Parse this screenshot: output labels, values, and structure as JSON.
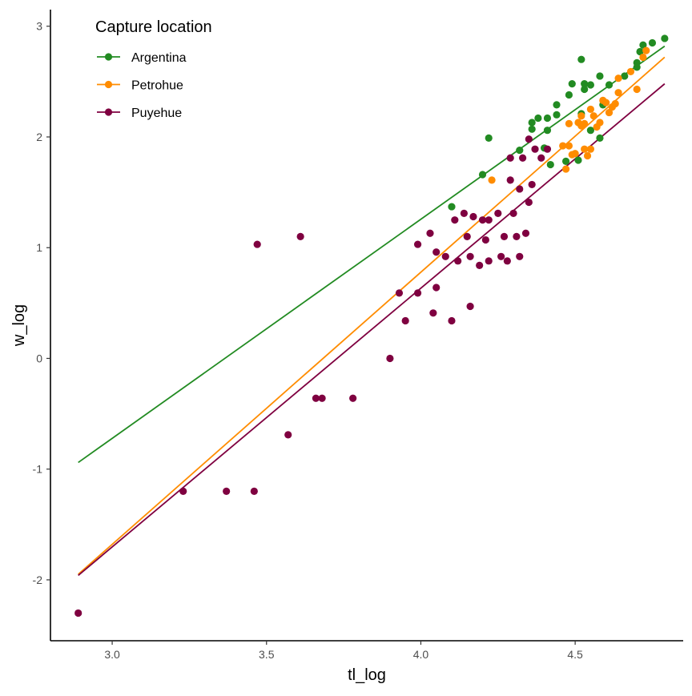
{
  "chart_data": {
    "type": "scatter",
    "xlabel": "tl_log",
    "ylabel": "w_log",
    "xlim": [
      2.8,
      4.85
    ],
    "ylim": [
      -2.55,
      3.15
    ],
    "xticks": [
      3.0,
      3.5,
      4.0,
      4.5
    ],
    "xtick_labels": [
      "3.0",
      "3.5",
      "4.0",
      "4.5"
    ],
    "yticks": [
      -2,
      -1,
      0,
      1,
      2,
      3
    ],
    "ytick_labels": [
      "-2",
      "-1",
      "0",
      "1",
      "2",
      "3"
    ],
    "grid": false,
    "legend": {
      "title": "Capture location",
      "position": "top-left"
    },
    "series": [
      {
        "name": "Argentina",
        "color": "#228B22",
        "points": [
          [
            4.1,
            1.37
          ],
          [
            4.2,
            1.66
          ],
          [
            4.22,
            1.99
          ],
          [
            4.32,
            1.88
          ],
          [
            4.36,
            2.07
          ],
          [
            4.36,
            2.13
          ],
          [
            4.38,
            2.17
          ],
          [
            4.4,
            1.9
          ],
          [
            4.41,
            2.06
          ],
          [
            4.41,
            2.17
          ],
          [
            4.42,
            1.75
          ],
          [
            4.44,
            2.2
          ],
          [
            4.44,
            2.29
          ],
          [
            4.47,
            1.78
          ],
          [
            4.48,
            2.38
          ],
          [
            4.49,
            2.48
          ],
          [
            4.51,
            1.79
          ],
          [
            4.52,
            2.7
          ],
          [
            4.52,
            2.21
          ],
          [
            4.53,
            2.43
          ],
          [
            4.53,
            2.48
          ],
          [
            4.55,
            2.47
          ],
          [
            4.55,
            2.06
          ],
          [
            4.58,
            2.55
          ],
          [
            4.58,
            1.99
          ],
          [
            4.59,
            2.29
          ],
          [
            4.61,
            2.47
          ],
          [
            4.66,
            2.55
          ],
          [
            4.7,
            2.63
          ],
          [
            4.7,
            2.67
          ],
          [
            4.71,
            2.77
          ],
          [
            4.72,
            2.83
          ],
          [
            4.75,
            2.85
          ],
          [
            4.79,
            2.89
          ]
        ],
        "fit": {
          "x": [
            2.89,
            4.79
          ],
          "y": [
            -0.94,
            2.82
          ]
        }
      },
      {
        "name": "Petrohue",
        "color": "#FF8C00",
        "points": [
          [
            4.23,
            1.61
          ],
          [
            4.46,
            1.92
          ],
          [
            4.47,
            1.71
          ],
          [
            4.48,
            1.92
          ],
          [
            4.48,
            2.12
          ],
          [
            4.49,
            1.84
          ],
          [
            4.5,
            1.85
          ],
          [
            4.51,
            2.13
          ],
          [
            4.52,
            2.19
          ],
          [
            4.52,
            2.1
          ],
          [
            4.53,
            2.12
          ],
          [
            4.53,
            1.89
          ],
          [
            4.54,
            1.83
          ],
          [
            4.55,
            1.89
          ],
          [
            4.55,
            2.25
          ],
          [
            4.56,
            2.19
          ],
          [
            4.57,
            2.09
          ],
          [
            4.58,
            2.13
          ],
          [
            4.59,
            2.33
          ],
          [
            4.6,
            2.31
          ],
          [
            4.61,
            2.22
          ],
          [
            4.62,
            2.27
          ],
          [
            4.63,
            2.3
          ],
          [
            4.64,
            2.4
          ],
          [
            4.64,
            2.53
          ],
          [
            4.68,
            2.59
          ],
          [
            4.7,
            2.43
          ],
          [
            4.72,
            2.72
          ],
          [
            4.73,
            2.78
          ]
        ],
        "fit": {
          "x": [
            2.89,
            4.79
          ],
          "y": [
            -1.95,
            2.72
          ]
        }
      },
      {
        "name": "Puyehue",
        "color": "#7F0040",
        "points": [
          [
            2.89,
            -2.3
          ],
          [
            3.23,
            -1.2
          ],
          [
            3.37,
            -1.2
          ],
          [
            3.46,
            -1.2
          ],
          [
            3.47,
            1.03
          ],
          [
            3.57,
            -0.69
          ],
          [
            3.61,
            1.1
          ],
          [
            3.66,
            -0.36
          ],
          [
            3.68,
            -0.36
          ],
          [
            3.78,
            -0.36
          ],
          [
            3.9,
            0.0
          ],
          [
            3.93,
            0.59
          ],
          [
            3.95,
            0.34
          ],
          [
            3.99,
            0.59
          ],
          [
            3.99,
            1.03
          ],
          [
            4.03,
            1.13
          ],
          [
            4.04,
            0.41
          ],
          [
            4.05,
            0.96
          ],
          [
            4.05,
            0.64
          ],
          [
            4.08,
            0.92
          ],
          [
            4.1,
            0.34
          ],
          [
            4.11,
            1.25
          ],
          [
            4.12,
            0.88
          ],
          [
            4.14,
            1.31
          ],
          [
            4.15,
            1.1
          ],
          [
            4.16,
            0.47
          ],
          [
            4.16,
            0.92
          ],
          [
            4.17,
            1.28
          ],
          [
            4.19,
            0.84
          ],
          [
            4.2,
            1.25
          ],
          [
            4.21,
            1.07
          ],
          [
            4.22,
            0.88
          ],
          [
            4.22,
            1.25
          ],
          [
            4.25,
            1.31
          ],
          [
            4.26,
            0.92
          ],
          [
            4.27,
            1.1
          ],
          [
            4.28,
            0.88
          ],
          [
            4.29,
            1.61
          ],
          [
            4.29,
            1.81
          ],
          [
            4.3,
            1.31
          ],
          [
            4.31,
            1.1
          ],
          [
            4.32,
            1.53
          ],
          [
            4.32,
            0.92
          ],
          [
            4.33,
            1.81
          ],
          [
            4.34,
            1.13
          ],
          [
            4.35,
            1.41
          ],
          [
            4.35,
            1.98
          ],
          [
            4.36,
            1.57
          ],
          [
            4.37,
            1.89
          ],
          [
            4.39,
            1.81
          ],
          [
            4.41,
            1.89
          ]
        ],
        "fit": {
          "x": [
            2.89,
            4.79
          ],
          "y": [
            -1.96,
            2.48
          ]
        }
      }
    ]
  }
}
